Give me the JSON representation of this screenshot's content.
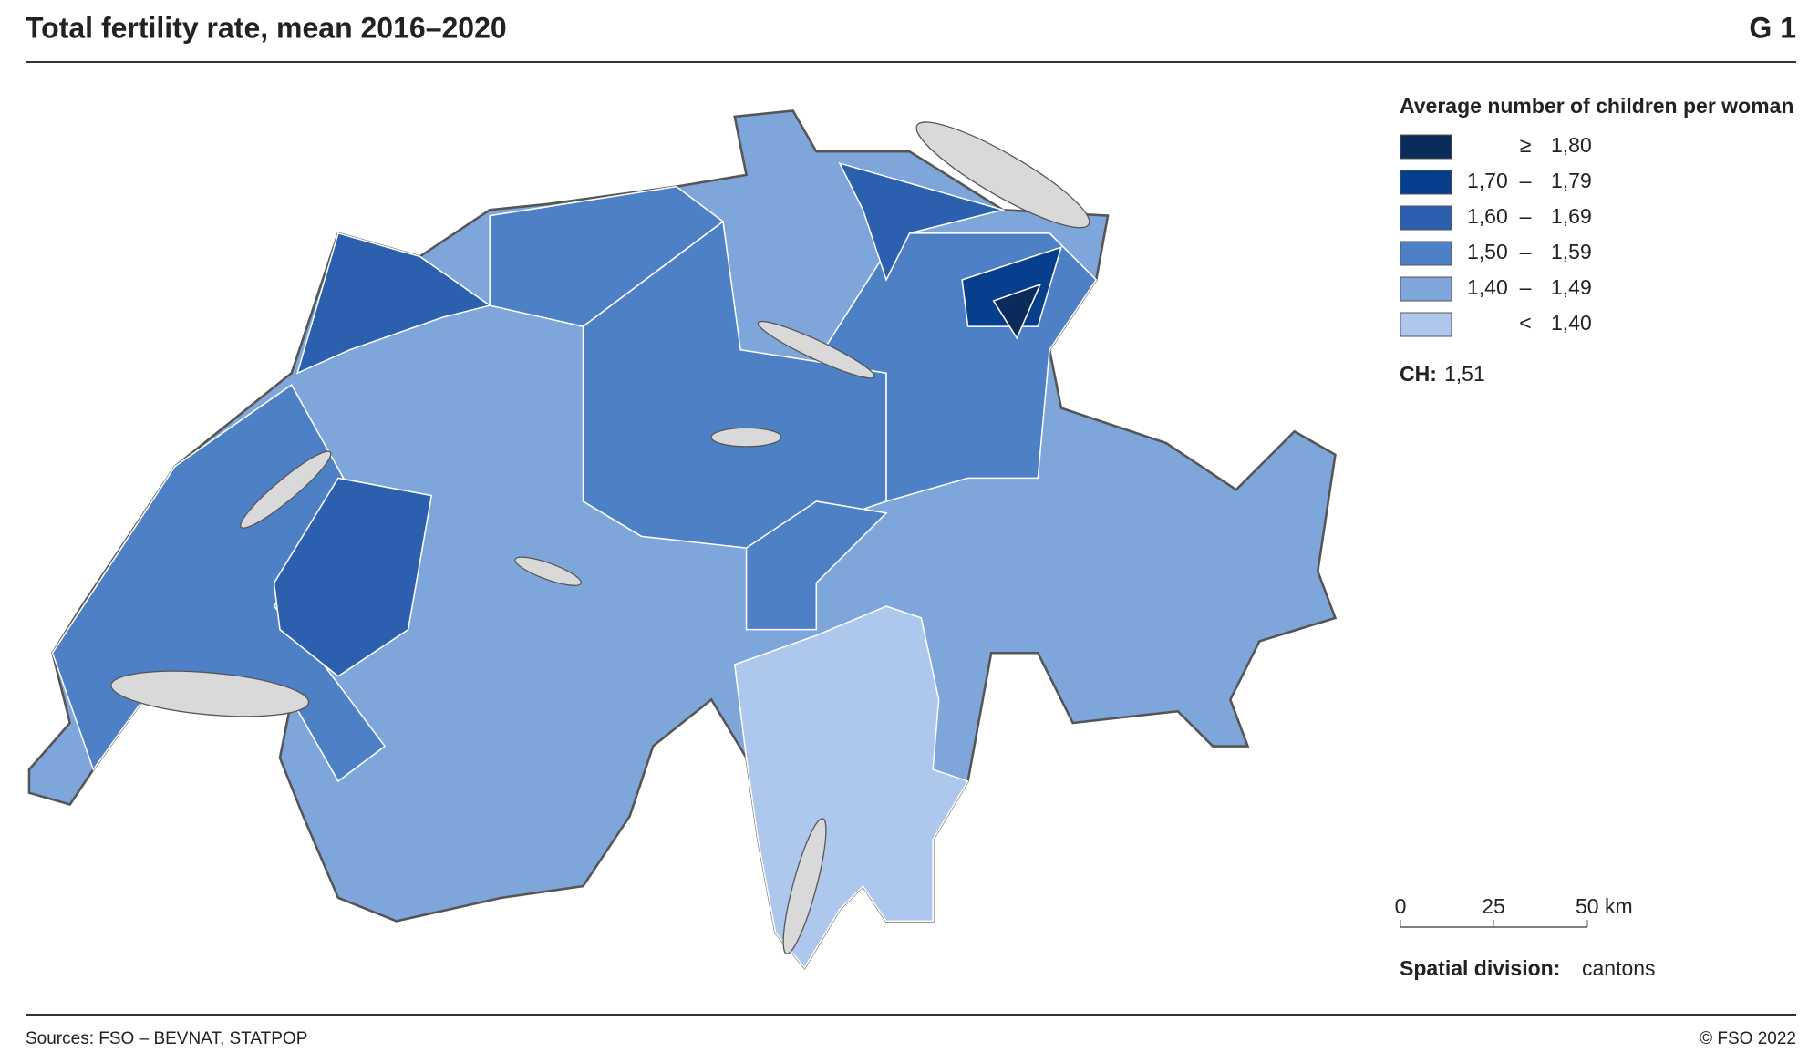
{
  "header": {
    "title": "Total fertility rate, mean 2016–2020",
    "label": "G 1"
  },
  "legend": {
    "title": "Average number of children per woman",
    "items": [
      {
        "op": "≥",
        "value": "1,80",
        "color": "#0b2b5a"
      },
      {
        "from": "1,70",
        "dash": "–",
        "to": "1,79",
        "color": "#083f8c"
      },
      {
        "from": "1,60",
        "dash": "–",
        "to": "1,69",
        "color": "#2c5fad"
      },
      {
        "from": "1,50",
        "dash": "–",
        "to": "1,59",
        "color": "#4e80c6"
      },
      {
        "from": "1,40",
        "dash": "–",
        "to": "1,49",
        "color": "#7ea6db"
      },
      {
        "op": "<",
        "value": "1,40",
        "color": "#aec8ed"
      }
    ]
  },
  "national": {
    "label": "CH:",
    "value": "1,51"
  },
  "scale_bar": {
    "labels": [
      "0",
      "25",
      "50 km"
    ]
  },
  "spatial_division": {
    "label": "Spatial division:",
    "value": "cantons"
  },
  "footer": {
    "sources": "Sources: FSO – BEVNAT, STATPOP",
    "copyright": "© FSO 2022"
  }
}
